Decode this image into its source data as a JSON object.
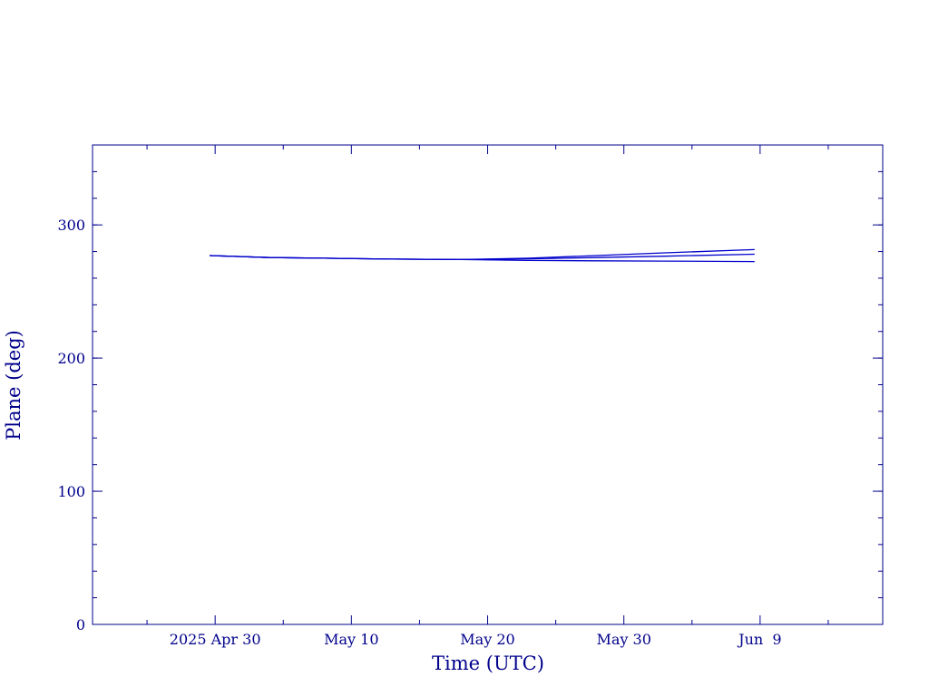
{
  "chart_data": {
    "type": "line",
    "title": "",
    "xlabel": "Time (UTC)",
    "ylabel": "Plane (deg)",
    "xlim": [
      "2025-04-21",
      "2025-06-18"
    ],
    "ylim": [
      0,
      360
    ],
    "x_tick_labels": [
      {
        "date": "2025-04-30",
        "label": "2025 Apr 30"
      },
      {
        "date": "2025-05-10",
        "label": "May 10"
      },
      {
        "date": "2025-05-20",
        "label": "May 20"
      },
      {
        "date": "2025-05-30",
        "label": "May 30"
      },
      {
        "date": "2025-06-09",
        "label": "Jun  9"
      }
    ],
    "x_minor_ticks": [
      "2025-04-25",
      "2025-05-05",
      "2025-05-15",
      "2025-05-25",
      "2025-06-04",
      "2025-06-14"
    ],
    "y_tick_labels": [
      {
        "value": 0,
        "label": "0"
      },
      {
        "value": 100,
        "label": "100"
      },
      {
        "value": 200,
        "label": "200"
      },
      {
        "value": 300,
        "label": "300"
      }
    ],
    "y_minor_step": 20,
    "color": "#0000cc",
    "axis_color": "#00008b",
    "series": [
      {
        "x": [
          "2025-04-29.6",
          "2025-05-04",
          "2025-05-08",
          "2025-05-13",
          "2025-05-18",
          "2025-05-23",
          "2025-05-28",
          "2025-06-02",
          "2025-06-08.6"
        ],
        "y": [
          277,
          275.5,
          275,
          274.3,
          274,
          275,
          277,
          279,
          281.5
        ]
      },
      {
        "x": [
          "2025-04-29.6",
          "2025-05-04",
          "2025-05-08",
          "2025-05-13",
          "2025-05-18",
          "2025-05-23",
          "2025-05-28",
          "2025-06-02",
          "2025-06-08.6"
        ],
        "y": [
          277,
          275.5,
          275,
          274.3,
          274,
          274.5,
          275.5,
          276.5,
          278
        ]
      },
      {
        "x": [
          "2025-04-29.6",
          "2025-05-04",
          "2025-05-08",
          "2025-05-13",
          "2025-05-18",
          "2025-05-23",
          "2025-05-28",
          "2025-06-02",
          "2025-06-08.6"
        ],
        "y": [
          277,
          275.5,
          275,
          274.3,
          274,
          273.3,
          273,
          272.8,
          272.5
        ]
      }
    ]
  }
}
